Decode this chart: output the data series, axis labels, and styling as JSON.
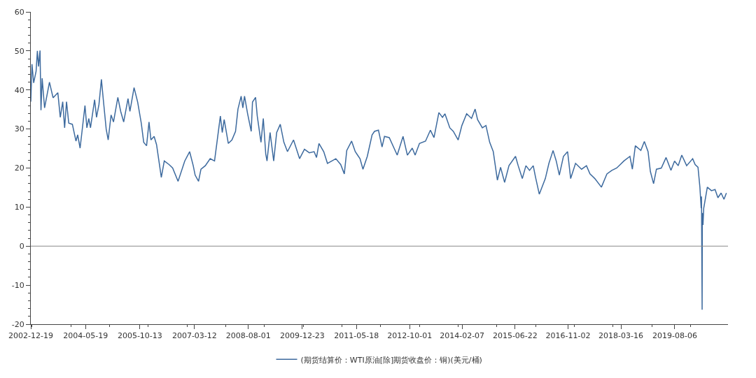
{
  "chart_data": {
    "type": "line",
    "x": [
      "2002-12-19",
      "2002-12-30",
      "2003-01-15",
      "2003-02-07",
      "2003-02-19",
      "2003-03-02",
      "2003-03-16",
      "2003-03-25",
      "2003-04-05",
      "2003-04-28",
      "2003-06-13",
      "2003-07-17",
      "2003-08-31",
      "2003-09-23",
      "2003-10-16",
      "2003-11-03",
      "2003-11-21",
      "2003-12-12",
      "2004-01-15",
      "2004-02-18",
      "2004-03-05",
      "2004-03-28",
      "2004-05-13",
      "2004-05-31",
      "2004-06-18",
      "2004-07-04",
      "2004-08-12",
      "2004-08-30",
      "2004-09-22",
      "2004-10-15",
      "2004-11-02",
      "2004-11-29",
      "2004-12-18",
      "2005-01-14",
      "2005-02-06",
      "2005-03-19",
      "2005-04-15",
      "2005-05-13",
      "2005-06-23",
      "2005-07-11",
      "2005-08-19",
      "2005-09-22",
      "2005-10-26",
      "2005-11-18",
      "2005-12-15",
      "2006-01-07",
      "2006-01-25",
      "2006-02-24",
      "2006-03-19",
      "2006-05-03",
      "2006-05-31",
      "2006-07-15",
      "2006-08-18",
      "2006-10-08",
      "2006-12-10",
      "2007-01-25",
      "2007-02-28",
      "2007-03-18",
      "2007-04-19",
      "2007-05-12",
      "2007-06-22",
      "2007-08-07",
      "2007-09-17",
      "2007-10-10",
      "2007-11-11",
      "2007-11-29",
      "2007-12-17",
      "2008-01-25",
      "2008-02-28",
      "2008-04-02",
      "2008-04-25",
      "2008-05-25",
      "2008-06-10",
      "2008-06-26",
      "2008-07-25",
      "2008-08-28",
      "2008-09-09",
      "2008-10-08",
      "2008-10-24",
      "2008-11-28",
      "2008-12-20",
      "2009-01-12",
      "2009-01-24",
      "2009-02-22",
      "2009-03-28",
      "2009-04-25",
      "2009-05-29",
      "2009-07-02",
      "2009-08-05",
      "2009-10-01",
      "2009-11-27",
      "2010-01-12",
      "2010-02-27",
      "2010-04-13",
      "2010-05-06",
      "2010-05-29",
      "2010-07-13",
      "2010-08-17",
      "2010-11-04",
      "2010-12-20",
      "2011-01-23",
      "2011-02-15",
      "2011-04-02",
      "2011-05-06",
      "2011-06-20",
      "2011-07-18",
      "2011-08-28",
      "2011-10-12",
      "2011-11-04",
      "2011-12-11",
      "2012-01-14",
      "2012-02-06",
      "2012-03-22",
      "2012-06-05",
      "2012-07-30",
      "2012-09-09",
      "2012-10-25",
      "2012-11-21",
      "2013-01-01",
      "2013-02-27",
      "2013-04-14",
      "2013-05-18",
      "2013-07-03",
      "2013-08-06",
      "2013-08-29",
      "2013-10-14",
      "2013-11-16",
      "2014-01-01",
      "2014-02-05",
      "2014-03-22",
      "2014-05-07",
      "2014-06-10",
      "2014-07-03",
      "2014-08-17",
      "2014-09-20",
      "2014-10-25",
      "2014-11-28",
      "2015-01-06",
      "2015-02-05",
      "2015-03-15",
      "2015-04-25",
      "2015-06-26",
      "2015-07-21",
      "2015-08-29",
      "2015-10-02",
      "2015-11-05",
      "2015-12-10",
      "2016-01-01",
      "2016-02-05",
      "2016-04-02",
      "2016-05-06",
      "2016-06-14",
      "2016-07-14",
      "2016-08-12",
      "2016-09-20",
      "2016-10-29",
      "2016-11-27",
      "2017-01-12",
      "2017-03-10",
      "2017-04-25",
      "2017-05-28",
      "2017-07-13",
      "2017-09-13",
      "2017-11-04",
      "2017-12-20",
      "2018-02-04",
      "2018-03-10",
      "2018-04-13",
      "2018-06-09",
      "2018-07-02",
      "2018-07-30",
      "2018-09-20",
      "2018-10-23",
      "2018-11-27",
      "2018-12-19",
      "2019-01-18",
      "2019-02-14",
      "2019-04-01",
      "2019-05-16",
      "2019-07-01",
      "2019-08-04",
      "2019-09-07",
      "2019-10-11",
      "2019-11-26",
      "2020-01-22",
      "2020-02-14",
      "2020-03-12",
      "2020-03-30",
      "2020-04-11",
      "2020-04-14",
      "2020-04-20",
      "2020-04-22",
      "2020-04-28",
      "2020-05-05",
      "2020-06-08",
      "2020-07-17",
      "2020-08-20",
      "2020-09-16",
      "2020-10-16",
      "2020-11-12",
      "2020-12-05"
    ],
    "series": [
      {
        "name": "(期货结算价：WTI原油[除]期货收盘价：铜)(美元/桶)",
        "color": "#3d6a9e",
        "values": [
          37,
          46.6,
          41.8,
          44.8,
          50,
          46,
          50.1,
          34.8,
          43,
          35.4,
          42,
          38,
          39.3,
          33,
          37,
          30.3,
          37,
          31.5,
          31.2,
          26.9,
          28.5,
          25.1,
          36,
          30.3,
          32.7,
          30.3,
          37.5,
          33,
          36.3,
          42.7,
          37.5,
          30,
          27.2,
          33.6,
          31.8,
          38.1,
          34.5,
          31.8,
          37.8,
          34.5,
          40.6,
          36.9,
          31.5,
          26.6,
          25.7,
          31.8,
          27.2,
          28.1,
          26,
          17.6,
          21.8,
          20.9,
          20,
          16.6,
          21.8,
          24.2,
          20.6,
          18.2,
          16.6,
          19.7,
          20.6,
          22.4,
          21.8,
          26.6,
          33.3,
          29.1,
          32.4,
          26.3,
          27.2,
          29.4,
          35.1,
          38.4,
          35.4,
          38.4,
          33.9,
          29.4,
          36.9,
          38.1,
          33.3,
          26.6,
          32.7,
          23.6,
          21.8,
          29.1,
          21.8,
          29.1,
          31.2,
          26.6,
          24.2,
          27.2,
          22.4,
          24.8,
          23.9,
          24.2,
          22.7,
          26.3,
          24.2,
          21.2,
          22.4,
          20.9,
          18.5,
          24.5,
          26.9,
          24.2,
          22.4,
          19.7,
          23,
          28.5,
          29.4,
          29.7,
          25.4,
          28.1,
          27.8,
          23.3,
          28.1,
          23.3,
          25.1,
          23.3,
          26.3,
          26.9,
          29.7,
          27.8,
          34.2,
          33,
          33.9,
          30.3,
          29.4,
          27.2,
          30.9,
          33.9,
          32.7,
          35.1,
          32.4,
          30.3,
          30.9,
          26.6,
          24.2,
          16.9,
          20.2,
          16.3,
          20.6,
          23,
          20.6,
          17.3,
          20.6,
          19.4,
          20.6,
          17.6,
          13.3,
          17.3,
          21.2,
          24.5,
          21.8,
          18.2,
          23,
          24.2,
          17.3,
          21.2,
          19.7,
          20.6,
          18.5,
          17.3,
          15.1,
          18.5,
          19.4,
          20,
          20.9,
          21.8,
          23,
          19.7,
          25.7,
          24.5,
          26.8,
          24.2,
          19.1,
          16,
          19.7,
          20,
          22.7,
          19.4,
          21.8,
          20.6,
          23.3,
          20.6,
          22.4,
          20.9,
          20.2,
          15.1,
          9.7,
          12.7,
          -16.3,
          8.5,
          5.4,
          9.7,
          15.1,
          14.2,
          14.5,
          12.4,
          13.6,
          12,
          13.6
        ]
      }
    ],
    "xlim": [
      "2002-12-19",
      "2020-12-20"
    ],
    "xticks": [
      {
        "value": "2002-12-19",
        "label": "2002-12-19"
      },
      {
        "value": "2004-05-19",
        "label": "2004-05-19"
      },
      {
        "value": "2005-10-13",
        "label": "2005-10-13"
      },
      {
        "value": "2007-03-12",
        "label": "2007-03-12"
      },
      {
        "value": "2008-08-01",
        "label": "2008-08-01"
      },
      {
        "value": "2009-12-23",
        "label": "2009-12-23"
      },
      {
        "value": "2011-05-18",
        "label": "2011-05-18"
      },
      {
        "value": "2012-10-01",
        "label": "2012-10-01"
      },
      {
        "value": "2014-02-07",
        "label": "2014-02-07"
      },
      {
        "value": "2015-06-22",
        "label": "2015-06-22"
      },
      {
        "value": "2016-11-02",
        "label": "2016-11-02"
      },
      {
        "value": "2018-03-16",
        "label": "2018-03-16"
      },
      {
        "value": "2019-08-06",
        "label": "2019-08-06"
      }
    ],
    "ylim": [
      -20,
      60
    ],
    "yticks": [
      -20,
      -10,
      0,
      10,
      20,
      30,
      40,
      50,
      60
    ],
    "ref_lines": [
      {
        "axis": "y",
        "value": 0,
        "color": "#888888"
      }
    ],
    "legend": "bottom",
    "marker": "none",
    "line_style": "solid"
  }
}
